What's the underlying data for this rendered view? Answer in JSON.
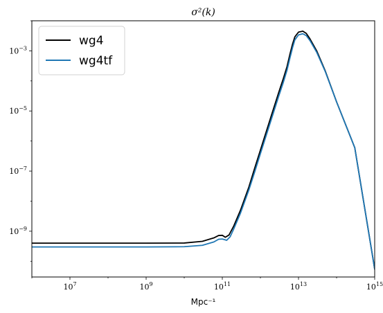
{
  "chart_data": {
    "type": "line",
    "title": "σ²(k)",
    "xlabel": "Mpc⁻¹",
    "ylabel": "",
    "xscale": "log",
    "yscale": "log",
    "xlim": [
      1000000.0,
      1000000000000000.0
    ],
    "ylim": [
      3e-11,
      0.01
    ],
    "xticks": [
      {
        "value": 10000000.0,
        "base": "10",
        "exp": "7"
      },
      {
        "value": 1000000000.0,
        "base": "10",
        "exp": "9"
      },
      {
        "value": 100000000000.0,
        "base": "10",
        "exp": "11"
      },
      {
        "value": 10000000000000.0,
        "base": "10",
        "exp": "13"
      },
      {
        "value": 1000000000000000.0,
        "base": "10",
        "exp": "15"
      }
    ],
    "yticks": [
      {
        "value": 1e-09,
        "base": "10",
        "exp": "−9"
      },
      {
        "value": 1e-07,
        "base": "10",
        "exp": "−7"
      },
      {
        "value": 1e-05,
        "base": "10",
        "exp": "−5"
      },
      {
        "value": 0.001,
        "base": "10",
        "exp": "−3"
      }
    ],
    "grid": false,
    "legend_position": "top-left",
    "series": [
      {
        "name": "wg4",
        "color": "#000000",
        "points": [
          [
            1000000.0,
            4e-10
          ],
          [
            10000000.0,
            4e-10
          ],
          [
            100000000.0,
            4e-10
          ],
          [
            1000000000.0,
            4e-10
          ],
          [
            10000000000.0,
            4.05e-10
          ],
          [
            30000000000.0,
            4.6e-10
          ],
          [
            60000000000.0,
            6e-10
          ],
          [
            80000000000.0,
            7.2e-10
          ],
          [
            100000000000.0,
            7.3e-10
          ],
          [
            120000000000.0,
            6.3e-10
          ],
          [
            150000000000.0,
            7.5e-10
          ],
          [
            200000000000.0,
            1.5e-09
          ],
          [
            300000000000.0,
            5e-09
          ],
          [
            500000000000.0,
            3e-08
          ],
          [
            700000000000.0,
            1.2e-07
          ],
          [
            1000000000000.0,
            5e-07
          ],
          [
            2000000000000.0,
            8e-06
          ],
          [
            3000000000000.0,
            4e-05
          ],
          [
            4000000000000.0,
            0.00012
          ],
          [
            5000000000000.0,
            0.0003
          ],
          [
            6000000000000.0,
            0.0008
          ],
          [
            7000000000000.0,
            0.0017
          ],
          [
            8000000000000.0,
            0.0029
          ],
          [
            10000000000000.0,
            0.0042
          ],
          [
            13000000000000.0,
            0.0045
          ],
          [
            16000000000000.0,
            0.0038
          ],
          [
            20000000000000.0,
            0.0025
          ],
          [
            30000000000000.0,
            0.001
          ],
          [
            50000000000000.0,
            0.00022
          ],
          [
            100000000000000.0,
            2e-05
          ],
          [
            300000000000000.0,
            6e-07
          ],
          [
            1000000000000000.0,
            5.5e-11
          ]
        ]
      },
      {
        "name": "wg4tf",
        "color": "#1f77b4",
        "points": [
          [
            1000000.0,
            3e-10
          ],
          [
            10000000.0,
            3e-10
          ],
          [
            100000000.0,
            3e-10
          ],
          [
            1000000000.0,
            3e-10
          ],
          [
            10000000000.0,
            3.05e-10
          ],
          [
            30000000000.0,
            3.4e-10
          ],
          [
            60000000000.0,
            4.4e-10
          ],
          [
            80000000000.0,
            5.4e-10
          ],
          [
            100000000000.0,
            5.5e-10
          ],
          [
            130000000000.0,
            5e-10
          ],
          [
            160000000000.0,
            6.5e-10
          ],
          [
            200000000000.0,
            1.2e-09
          ],
          [
            300000000000.0,
            4e-09
          ],
          [
            500000000000.0,
            2.4e-08
          ],
          [
            700000000000.0,
            9e-08
          ],
          [
            1000000000000.0,
            3.8e-07
          ],
          [
            2000000000000.0,
            6e-06
          ],
          [
            3000000000000.0,
            3e-05
          ],
          [
            4000000000000.0,
            9e-05
          ],
          [
            5000000000000.0,
            0.00023
          ],
          [
            6000000000000.0,
            0.0006
          ],
          [
            7000000000000.0,
            0.0013
          ],
          [
            8000000000000.0,
            0.0023
          ],
          [
            10000000000000.0,
            0.0034
          ],
          [
            13000000000000.0,
            0.0037
          ],
          [
            16000000000000.0,
            0.0032
          ],
          [
            20000000000000.0,
            0.0022
          ],
          [
            30000000000000.0,
            0.0009
          ],
          [
            50000000000000.0,
            0.00021
          ],
          [
            100000000000000.0,
            2e-05
          ],
          [
            300000000000000.0,
            6e-07
          ],
          [
            1000000000000000.0,
            5.5e-11
          ]
        ]
      }
    ]
  }
}
